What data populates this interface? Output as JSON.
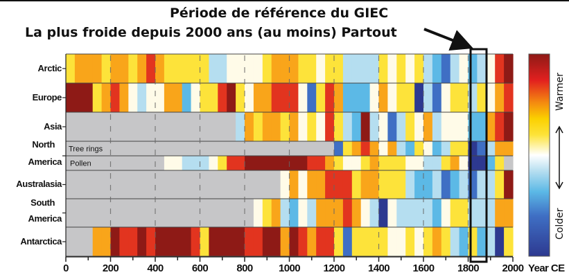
{
  "chart_data": {
    "type": "heatmap",
    "title_line1": "Période de référence du GIEC",
    "title_line2": "La plus froide depuis 2000 ans (au moins) Partout",
    "xlabel": "Year CE",
    "xlim": [
      0,
      2000
    ],
    "x_ticks": [
      "0",
      "200",
      "400",
      "600",
      "800",
      "1000",
      "1200",
      "1400",
      "1600",
      "1800",
      "2000"
    ],
    "bin_years": 40,
    "value_scale": "temperature anomaly category, -4 (coldest) to 4 (warmest), null = no data",
    "colors": {
      "-4": "#2d3990",
      "-3": "#3f6fc4",
      "-2": "#5cb9e6",
      "-1": "#b5def0",
      "0": "#fffbe8",
      "1": "#fde33a",
      "2": "#f9a51a",
      "3": "#e2341f",
      "4": "#8e1a16",
      "null": "#c6c6c8"
    },
    "highlight_years": [
      1810,
      1885
    ],
    "colorbar": {
      "top_label": "Warmer",
      "bottom_label": "Colder"
    },
    "rows": [
      {
        "label": "Arctic",
        "values": [
          1,
          2,
          2,
          2,
          1,
          2,
          2,
          1,
          2,
          3,
          2,
          1,
          1,
          1,
          1,
          1,
          -1,
          -1,
          0,
          0,
          0,
          0,
          1,
          2,
          2,
          2,
          1,
          1,
          0,
          1,
          1,
          -1,
          -1,
          -1,
          -1,
          1,
          0,
          1,
          0,
          1,
          -1,
          -2,
          -3,
          -1,
          0,
          -2,
          -1,
          0,
          3,
          4
        ]
      },
      {
        "label": "Europe",
        "values": [
          4,
          4,
          4,
          1,
          2,
          3,
          2,
          0,
          -1,
          0,
          0,
          2,
          2,
          -2,
          0,
          1,
          1,
          3,
          4,
          1,
          0,
          2,
          2,
          3,
          3,
          3,
          0,
          -3,
          1,
          3,
          2,
          -2,
          -2,
          -2,
          0,
          2,
          0,
          1,
          1,
          -4,
          -1,
          -3,
          0,
          1,
          1,
          -1,
          1,
          0,
          2,
          3
        ]
      },
      {
        "label": "Asia",
        "values": [
          null,
          null,
          null,
          null,
          null,
          null,
          null,
          null,
          null,
          null,
          null,
          null,
          null,
          null,
          null,
          null,
          null,
          null,
          null,
          -1,
          2,
          1,
          2,
          2,
          1,
          2,
          0,
          1,
          0,
          3,
          1,
          -1,
          -2,
          4,
          -1,
          0,
          -3,
          -1,
          1,
          0,
          2,
          -1,
          0,
          0,
          0,
          -2,
          -2,
          2,
          3,
          4
        ]
      },
      {
        "label": "North America",
        "sublabel": "Tree rings",
        "values": [
          null,
          null,
          null,
          null,
          null,
          null,
          null,
          null,
          null,
          null,
          null,
          null,
          null,
          null,
          null,
          null,
          null,
          null,
          null,
          null,
          null,
          null,
          null,
          null,
          null,
          null,
          null,
          null,
          null,
          null,
          -3,
          1,
          2,
          3,
          2,
          0,
          2,
          -1,
          -2,
          1,
          0,
          -2,
          -1,
          1,
          1,
          -4,
          -3,
          -1,
          2,
          2
        ]
      },
      {
        "label": "",
        "sublabel": "Pollen",
        "values": [
          null,
          null,
          null,
          null,
          null,
          null,
          null,
          null,
          null,
          null,
          null,
          0,
          0,
          -1,
          -1,
          -1,
          0,
          1,
          3,
          3,
          4,
          4,
          4,
          4,
          4,
          4,
          4,
          3,
          3,
          2,
          1,
          0,
          0,
          1,
          2,
          1,
          1,
          1,
          0,
          0,
          -1,
          -1,
          1,
          2,
          0,
          -4,
          -4,
          -2,
          1,
          null
        ]
      },
      {
        "label": "Australasia",
        "values": [
          null,
          null,
          null,
          null,
          null,
          null,
          null,
          null,
          null,
          null,
          null,
          null,
          null,
          null,
          null,
          null,
          null,
          null,
          null,
          null,
          null,
          null,
          null,
          null,
          0,
          2,
          0,
          2,
          2,
          3,
          3,
          3,
          1,
          2,
          2,
          1,
          1,
          1,
          -1,
          -2,
          -2,
          -1,
          -3,
          -2,
          -1,
          -3,
          -1,
          -1,
          1,
          4
        ]
      },
      {
        "label": "South America",
        "values": [
          null,
          null,
          null,
          null,
          null,
          null,
          null,
          null,
          null,
          null,
          null,
          null,
          null,
          null,
          null,
          null,
          null,
          null,
          null,
          null,
          null,
          0,
          1,
          2,
          -1,
          -2,
          0,
          -1,
          2,
          2,
          2,
          3,
          2,
          0,
          -1,
          -4,
          0,
          -1,
          -1,
          -1,
          -1,
          -2,
          0,
          1,
          1,
          -1,
          -1,
          -1,
          2,
          2
        ]
      },
      {
        "label": "Antarctica",
        "values": [
          null,
          null,
          null,
          2,
          2,
          4,
          3,
          3,
          4,
          3,
          4,
          4,
          4,
          4,
          3,
          1,
          4,
          4,
          4,
          4,
          3,
          3,
          4,
          4,
          2,
          4,
          3,
          2,
          3,
          3,
          1,
          -3,
          1,
          1,
          1,
          1,
          0,
          0,
          1,
          0,
          1,
          2,
          1,
          -1,
          -2,
          1,
          -2,
          -1,
          -4,
          1
        ]
      }
    ]
  }
}
